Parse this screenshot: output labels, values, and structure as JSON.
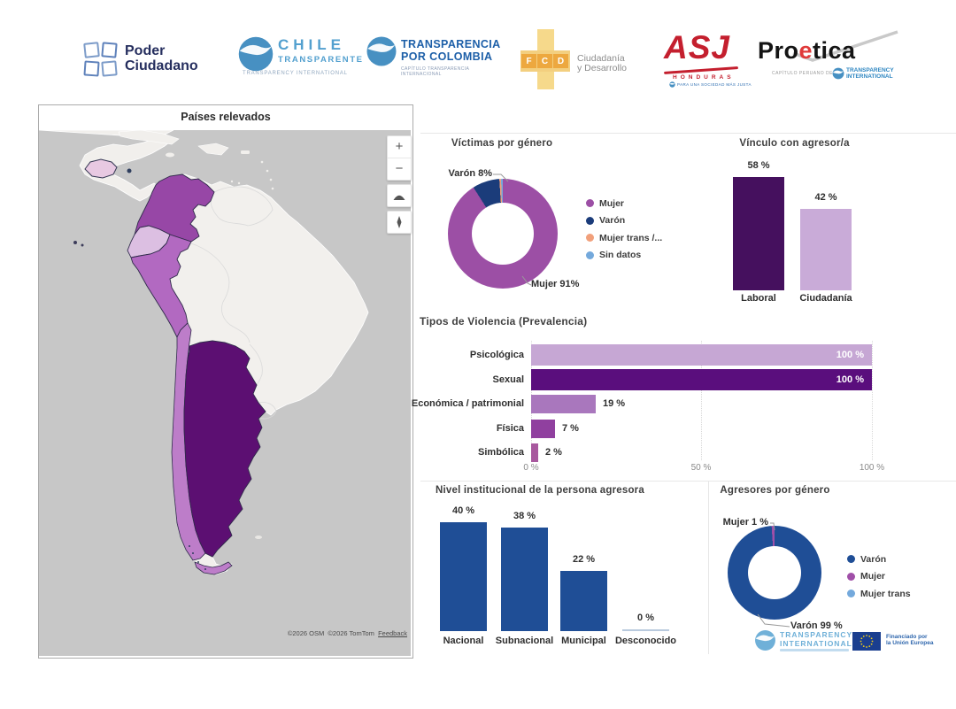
{
  "map_panel": {
    "title": "Países relevados",
    "controls": {
      "zoom_in": "+",
      "zoom_out": "−"
    },
    "attribution": {
      "osm": "©2026 OSM",
      "tomtom": "©2026 TomTom",
      "feedback": "Feedback"
    },
    "country_colors": {
      "honduras": "#e8c9e2",
      "colombia": "#9747a6",
      "ecuador": "#dcbfe2",
      "peru": "#b269c1",
      "chile": "#bd7dc9",
      "argentina": "#5c0f72"
    },
    "highlighted_countries": [
      "Honduras",
      "Colombia",
      "Ecuador",
      "Perú",
      "Chile",
      "Argentina"
    ]
  },
  "header_logos": {
    "poder_ciudadano": {
      "line1": "Poder",
      "line2": "Ciudadano"
    },
    "chile_transparente": {
      "line1": "CHILE",
      "line2": "TRANSPARENTE",
      "line3": "TRANSPARENCY INTERNATIONAL"
    },
    "transparencia_por_colombia": {
      "line1": "TRANSPARENCIA",
      "line2": "POR COLOMBIA",
      "line3": "CAPÍTULO TRANSPARENCIA INTERNACIONAL"
    },
    "fcd": {
      "letters": [
        "F",
        "C",
        "D"
      ],
      "line1": "Ciudadanía",
      "line2": "y Desarrollo"
    },
    "asj_honduras": {
      "acronym": "ASJ",
      "country": "HONDURAS",
      "tagline": "PARA UNA SOCIEDAD MÁS JUSTA"
    },
    "proetica": {
      "pre": "Pro",
      "accent": "e",
      "post": "tica",
      "sub": "CAPÍTULO PERUANO DE",
      "ti1": "TRANSPARENCY",
      "ti2": "INTERNATIONAL"
    }
  },
  "footer_logos": {
    "transparency_international": {
      "line1": "TRANSPARENCY",
      "line2": "INTERNATIONAL"
    },
    "eu_funding": {
      "line1": "Financiado por",
      "line2": "la Unión Europea"
    }
  },
  "chart_data": [
    {
      "id": "victimas",
      "type": "pie",
      "title": "Víctimas por género",
      "series": [
        {
          "name": "Mujer",
          "value": 91,
          "color": "#9c4fa5"
        },
        {
          "name": "Varón",
          "value": 8,
          "color": "#1b3c7a"
        },
        {
          "name": "Mujer trans /...",
          "value": 0.5,
          "color": "#f1a07b"
        },
        {
          "name": "Sin datos",
          "value": 0.5,
          "color": "#74a9dc"
        }
      ],
      "callouts": {
        "varon": "Varón 8%",
        "mujer": "Mujer 91%"
      },
      "legend_position": "right"
    },
    {
      "id": "vinculo",
      "type": "bar",
      "title": "Vínculo con agresor/a",
      "categories": [
        "Laboral",
        "Ciudadanía"
      ],
      "values": [
        58,
        42
      ],
      "value_labels": [
        "58 %",
        "42 %"
      ],
      "colors": [
        "#45105e",
        "#c9abd8"
      ],
      "ylim": [
        0,
        60
      ],
      "grid": "off"
    },
    {
      "id": "tipos",
      "type": "bar-horizontal",
      "title": "Tipos de Violencia (Prevalencia)",
      "categories": [
        "Psicológica",
        "Sexual",
        "Económica / patrimonial",
        "Física",
        "Simbólica"
      ],
      "values": [
        100,
        100,
        19,
        7,
        2
      ],
      "value_labels": [
        "100 %",
        "100 %",
        "19 %",
        "7 %",
        "2 %"
      ],
      "colors": [
        "#c6a7d4",
        "#5a0e7d",
        "#a977bd",
        "#90409f",
        "#a8589e"
      ],
      "xticks": [
        "0 %",
        "50 %",
        "100 %"
      ],
      "xlim": [
        0,
        100
      ],
      "grid": "dotted-vertical"
    },
    {
      "id": "nivel",
      "type": "bar",
      "title": "Nivel institucional de la persona agresora",
      "categories": [
        "Nacional",
        "Subnacional",
        "Municipal",
        "Desconocido"
      ],
      "values": [
        40,
        38,
        22,
        0
      ],
      "value_labels": [
        "40 %",
        "38 %",
        "22 %",
        "0 %"
      ],
      "colors": [
        "#1f4e96",
        "#1f4e96",
        "#1f4e96",
        "#1f4e96"
      ],
      "zero_line_color": "#b9cade",
      "ylim": [
        0,
        45
      ],
      "grid": "off"
    },
    {
      "id": "agresores",
      "type": "pie",
      "title": "Agresores por género",
      "series": [
        {
          "name": "Varón",
          "value": 99,
          "color": "#1f4e96"
        },
        {
          "name": "Mujer",
          "value": 1,
          "color": "#a04fa8"
        },
        {
          "name": "Mujer trans",
          "value": 0,
          "color": "#74a9dc"
        }
      ],
      "callouts": {
        "mujer": "Mujer 1 %",
        "varon": "Varón 99 %"
      },
      "legend_position": "right"
    }
  ]
}
